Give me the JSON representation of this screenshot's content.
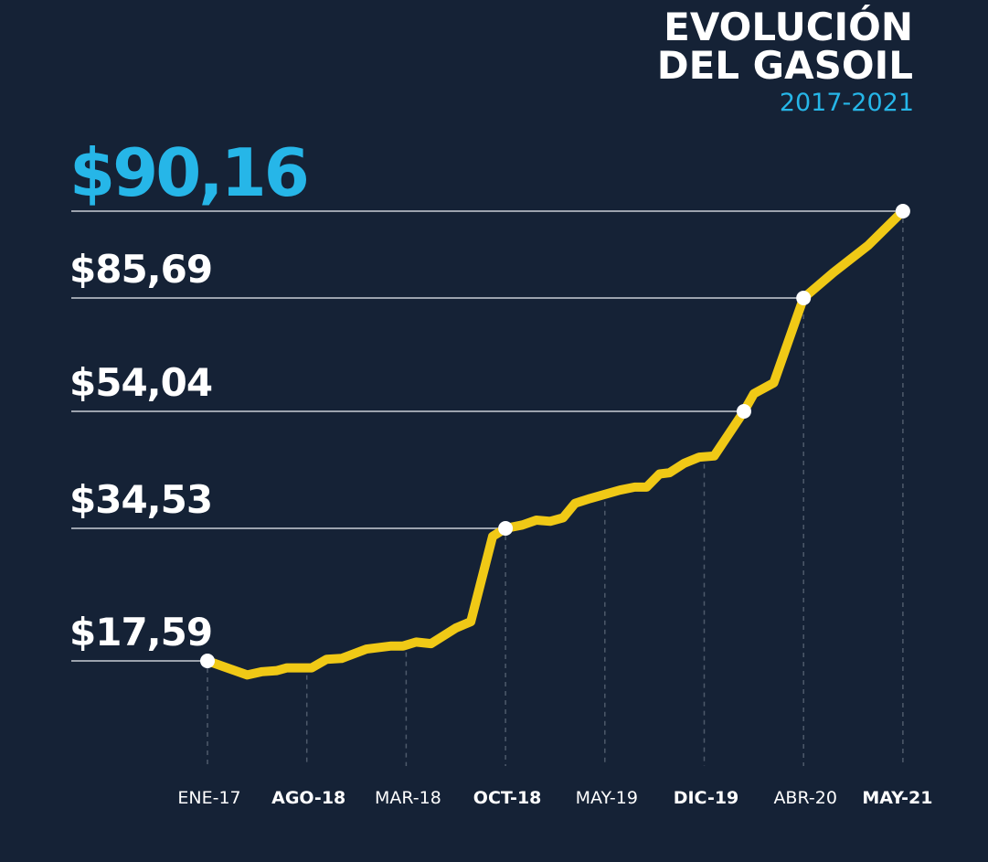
{
  "title_line1": "EVOLUCIÓN",
  "title_line2": "DEL GASOIL",
  "subtitle": "2017-2021",
  "colors": {
    "background": "#152236",
    "line": "#f0c916",
    "highlight": "#26b6e8",
    "text": "#ffffff",
    "marker": "#ffffff",
    "guide": "#c9ced6",
    "dash": "#4e5a6b"
  },
  "chart_data": {
    "type": "line",
    "title": "EVOLUCIÓN DEL GASOIL",
    "subtitle": "2017-2021",
    "xlabel": "",
    "ylabel": "",
    "x_ticks": [
      {
        "label": "ENE-17",
        "bold": false
      },
      {
        "label": "AGO-18",
        "bold": true
      },
      {
        "label": "MAR-18",
        "bold": false
      },
      {
        "label": "OCT-18",
        "bold": true
      },
      {
        "label": "MAY-19",
        "bold": false
      },
      {
        "label": "DIC-19",
        "bold": true
      },
      {
        "label": "ABR-20",
        "bold": false
      },
      {
        "label": "MAY-21",
        "bold": true
      }
    ],
    "x_range": [
      0,
      7
    ],
    "y_range": [
      17.59,
      90.16
    ],
    "y_scale": "price levels (piecewise, labelled)",
    "grid": false,
    "level_labels": [
      {
        "label": "$17,59",
        "value": 17.59,
        "highlight": false
      },
      {
        "label": "$34,53",
        "value": 34.53,
        "highlight": false
      },
      {
        "label": "$54,04",
        "value": 54.04,
        "highlight": false
      },
      {
        "label": "$85,69",
        "value": 85.69,
        "highlight": false
      },
      {
        "label": "$90,16",
        "value": 90.16,
        "highlight": true
      }
    ],
    "series": [
      {
        "points": [
          {
            "x": 0.0,
            "y": 17.59
          },
          {
            "x": 0.4,
            "y": 16.3
          },
          {
            "x": 0.55,
            "y": 16.6
          },
          {
            "x": 0.7,
            "y": 16.7
          },
          {
            "x": 0.8,
            "y": 16.95
          },
          {
            "x": 1.05,
            "y": 16.95
          },
          {
            "x": 1.2,
            "y": 17.8
          },
          {
            "x": 1.35,
            "y": 17.9
          },
          {
            "x": 1.6,
            "y": 19.1
          },
          {
            "x": 1.85,
            "y": 19.5
          },
          {
            "x": 1.97,
            "y": 19.5
          },
          {
            "x": 2.1,
            "y": 20.0
          },
          {
            "x": 2.25,
            "y": 19.8
          },
          {
            "x": 2.5,
            "y": 21.8
          },
          {
            "x": 2.65,
            "y": 22.6
          },
          {
            "x": 2.87,
            "y": 33.5
          },
          {
            "x": 3.0,
            "y": 34.53
          },
          {
            "x": 3.17,
            "y": 35.1
          },
          {
            "x": 3.31,
            "y": 35.9
          },
          {
            "x": 3.45,
            "y": 35.7
          },
          {
            "x": 3.58,
            "y": 36.3
          },
          {
            "x": 3.7,
            "y": 38.7
          },
          {
            "x": 3.85,
            "y": 39.5
          },
          {
            "x": 4.0,
            "y": 40.2
          },
          {
            "x": 4.15,
            "y": 40.9
          },
          {
            "x": 4.3,
            "y": 41.4
          },
          {
            "x": 4.42,
            "y": 41.4
          },
          {
            "x": 4.55,
            "y": 43.6
          },
          {
            "x": 4.65,
            "y": 43.8
          },
          {
            "x": 4.8,
            "y": 45.4
          },
          {
            "x": 4.95,
            "y": 46.4
          },
          {
            "x": 5.1,
            "y": 46.6
          },
          {
            "x": 5.4,
            "y": 54.04
          },
          {
            "x": 5.5,
            "y": 59.0
          },
          {
            "x": 5.7,
            "y": 62.0
          },
          {
            "x": 6.0,
            "y": 85.69
          },
          {
            "x": 6.3,
            "y": 87.0
          },
          {
            "x": 6.65,
            "y": 88.4
          },
          {
            "x": 7.0,
            "y": 90.16
          }
        ]
      }
    ],
    "markers": [
      {
        "x": 0.0,
        "y": 17.59
      },
      {
        "x": 3.0,
        "y": 34.53
      },
      {
        "x": 5.4,
        "y": 54.04
      },
      {
        "x": 6.0,
        "y": 85.69
      },
      {
        "x": 7.0,
        "y": 90.16
      }
    ]
  }
}
